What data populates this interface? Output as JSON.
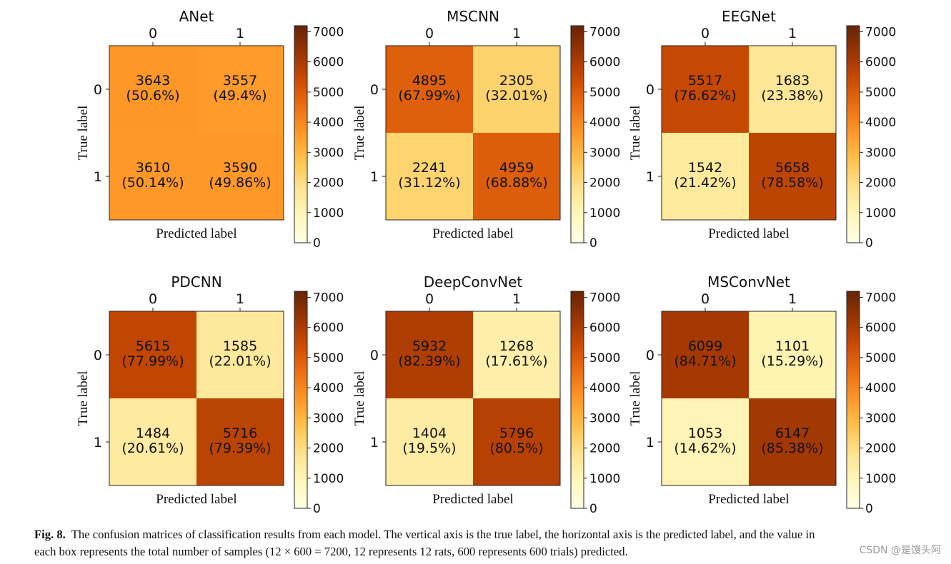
{
  "figure": {
    "caption_label": "Fig. 8.",
    "caption_line1": "The confusion matrices of classification results from each model. The vertical axis is the true label, the horizontal axis is the predicted label, and the value in",
    "caption_line2": "each box represents the total number of samples (12 × 600 = 7200, 12 represents 12 rats, 600 represents 600 trials) predicted.",
    "watermark": "CSDN @是馒头阿"
  },
  "chart_data": [
    {
      "type": "heatmap",
      "title": "ANet",
      "xlabel": "Predicted label",
      "ylabel": "True label",
      "x_ticks": [
        "0",
        "1"
      ],
      "y_ticks": [
        "0",
        "1"
      ],
      "values": [
        [
          3643,
          3557
        ],
        [
          3610,
          3590
        ]
      ],
      "percent_labels": [
        [
          "(50.6%)",
          "(49.4%)"
        ],
        [
          "(50.14%)",
          "(49.86%)"
        ]
      ],
      "colorbar_ticks": [
        "0",
        "1000",
        "2000",
        "3000",
        "4000",
        "5000",
        "6000",
        "7000"
      ],
      "colorbar_range": [
        0,
        7200
      ],
      "colormap": "YlOrBr"
    },
    {
      "type": "heatmap",
      "title": "MSCNN",
      "xlabel": "Predicted label",
      "ylabel": "True label",
      "x_ticks": [
        "0",
        "1"
      ],
      "y_ticks": [
        "0",
        "1"
      ],
      "values": [
        [
          4895,
          2305
        ],
        [
          2241,
          4959
        ]
      ],
      "percent_labels": [
        [
          "(67.99%)",
          "(32.01%)"
        ],
        [
          "(31.12%)",
          "(68.88%)"
        ]
      ],
      "colorbar_ticks": [
        "0",
        "1000",
        "2000",
        "3000",
        "4000",
        "5000",
        "6000",
        "7000"
      ],
      "colorbar_range": [
        0,
        7200
      ],
      "colormap": "YlOrBr"
    },
    {
      "type": "heatmap",
      "title": "EEGNet",
      "xlabel": "Predicted label",
      "ylabel": "True label",
      "x_ticks": [
        "0",
        "1"
      ],
      "y_ticks": [
        "0",
        "1"
      ],
      "values": [
        [
          5517,
          1683
        ],
        [
          1542,
          5658
        ]
      ],
      "percent_labels": [
        [
          "(76.62%)",
          "(23.38%)"
        ],
        [
          "(21.42%)",
          "(78.58%)"
        ]
      ],
      "colorbar_ticks": [
        "0",
        "1000",
        "2000",
        "3000",
        "4000",
        "5000",
        "6000",
        "7000"
      ],
      "colorbar_range": [
        0,
        7200
      ],
      "colormap": "YlOrBr"
    },
    {
      "type": "heatmap",
      "title": "PDCNN",
      "xlabel": "Predicted label",
      "ylabel": "True label",
      "x_ticks": [
        "0",
        "1"
      ],
      "y_ticks": [
        "0",
        "1"
      ],
      "values": [
        [
          5615,
          1585
        ],
        [
          1484,
          5716
        ]
      ],
      "percent_labels": [
        [
          "(77.99%)",
          "(22.01%)"
        ],
        [
          "(20.61%)",
          "(79.39%)"
        ]
      ],
      "colorbar_ticks": [
        "0",
        "1000",
        "2000",
        "3000",
        "4000",
        "5000",
        "6000",
        "7000"
      ],
      "colorbar_range": [
        0,
        7200
      ],
      "colormap": "YlOrBr"
    },
    {
      "type": "heatmap",
      "title": "DeepConvNet",
      "xlabel": "Predicted label",
      "ylabel": "True label",
      "x_ticks": [
        "0",
        "1"
      ],
      "y_ticks": [
        "0",
        "1"
      ],
      "values": [
        [
          5932,
          1268
        ],
        [
          1404,
          5796
        ]
      ],
      "percent_labels": [
        [
          "(82.39%)",
          "(17.61%)"
        ],
        [
          "(19.5%)",
          "(80.5%)"
        ]
      ],
      "colorbar_ticks": [
        "0",
        "1000",
        "2000",
        "3000",
        "4000",
        "5000",
        "6000",
        "7000"
      ],
      "colorbar_range": [
        0,
        7200
      ],
      "colormap": "YlOrBr"
    },
    {
      "type": "heatmap",
      "title": "MSConvNet",
      "xlabel": "Predicted label",
      "ylabel": "True label",
      "x_ticks": [
        "0",
        "1"
      ],
      "y_ticks": [
        "0",
        "1"
      ],
      "values": [
        [
          6099,
          1101
        ],
        [
          1053,
          6147
        ]
      ],
      "percent_labels": [
        [
          "(84.71%)",
          "(15.29%)"
        ],
        [
          "(14.62%)",
          "(85.38%)"
        ]
      ],
      "colorbar_ticks": [
        "0",
        "1000",
        "2000",
        "3000",
        "4000",
        "5000",
        "6000",
        "7000"
      ],
      "colorbar_range": [
        0,
        7200
      ],
      "colormap": "YlOrBr"
    }
  ]
}
